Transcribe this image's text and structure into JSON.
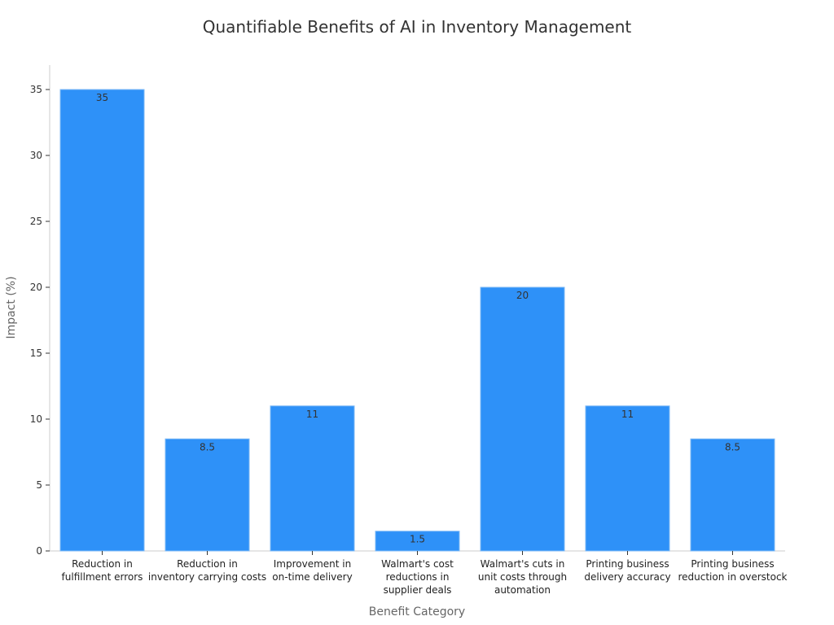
{
  "chart_data": {
    "type": "bar",
    "title": "Quantifiable Benefits of AI in Inventory Management",
    "xlabel": "Benefit Category",
    "ylabel": "Impact (%)",
    "ylim": [
      0,
      37
    ],
    "yticks": [
      0,
      5,
      10,
      15,
      20,
      25,
      30,
      35
    ],
    "categories": [
      [
        "Reduction in",
        "fulfillment errors"
      ],
      [
        "Reduction in",
        "inventory carrying costs"
      ],
      [
        "Improvement in",
        "on-time delivery"
      ],
      [
        "Walmart's cost",
        "reductions in",
        "supplier deals"
      ],
      [
        "Walmart's cuts in",
        "unit costs through",
        "automation"
      ],
      [
        "Printing business",
        "delivery accuracy"
      ],
      [
        "Printing business",
        "reduction in overstock"
      ]
    ],
    "values": [
      35,
      8.5,
      11,
      1.5,
      20,
      11,
      8.5
    ],
    "data_labels": [
      "35",
      "8.5",
      "11",
      "1.5",
      "20",
      "11",
      "8.5"
    ],
    "bar_color": "#2e91f8",
    "grid": false,
    "legend": "none"
  }
}
